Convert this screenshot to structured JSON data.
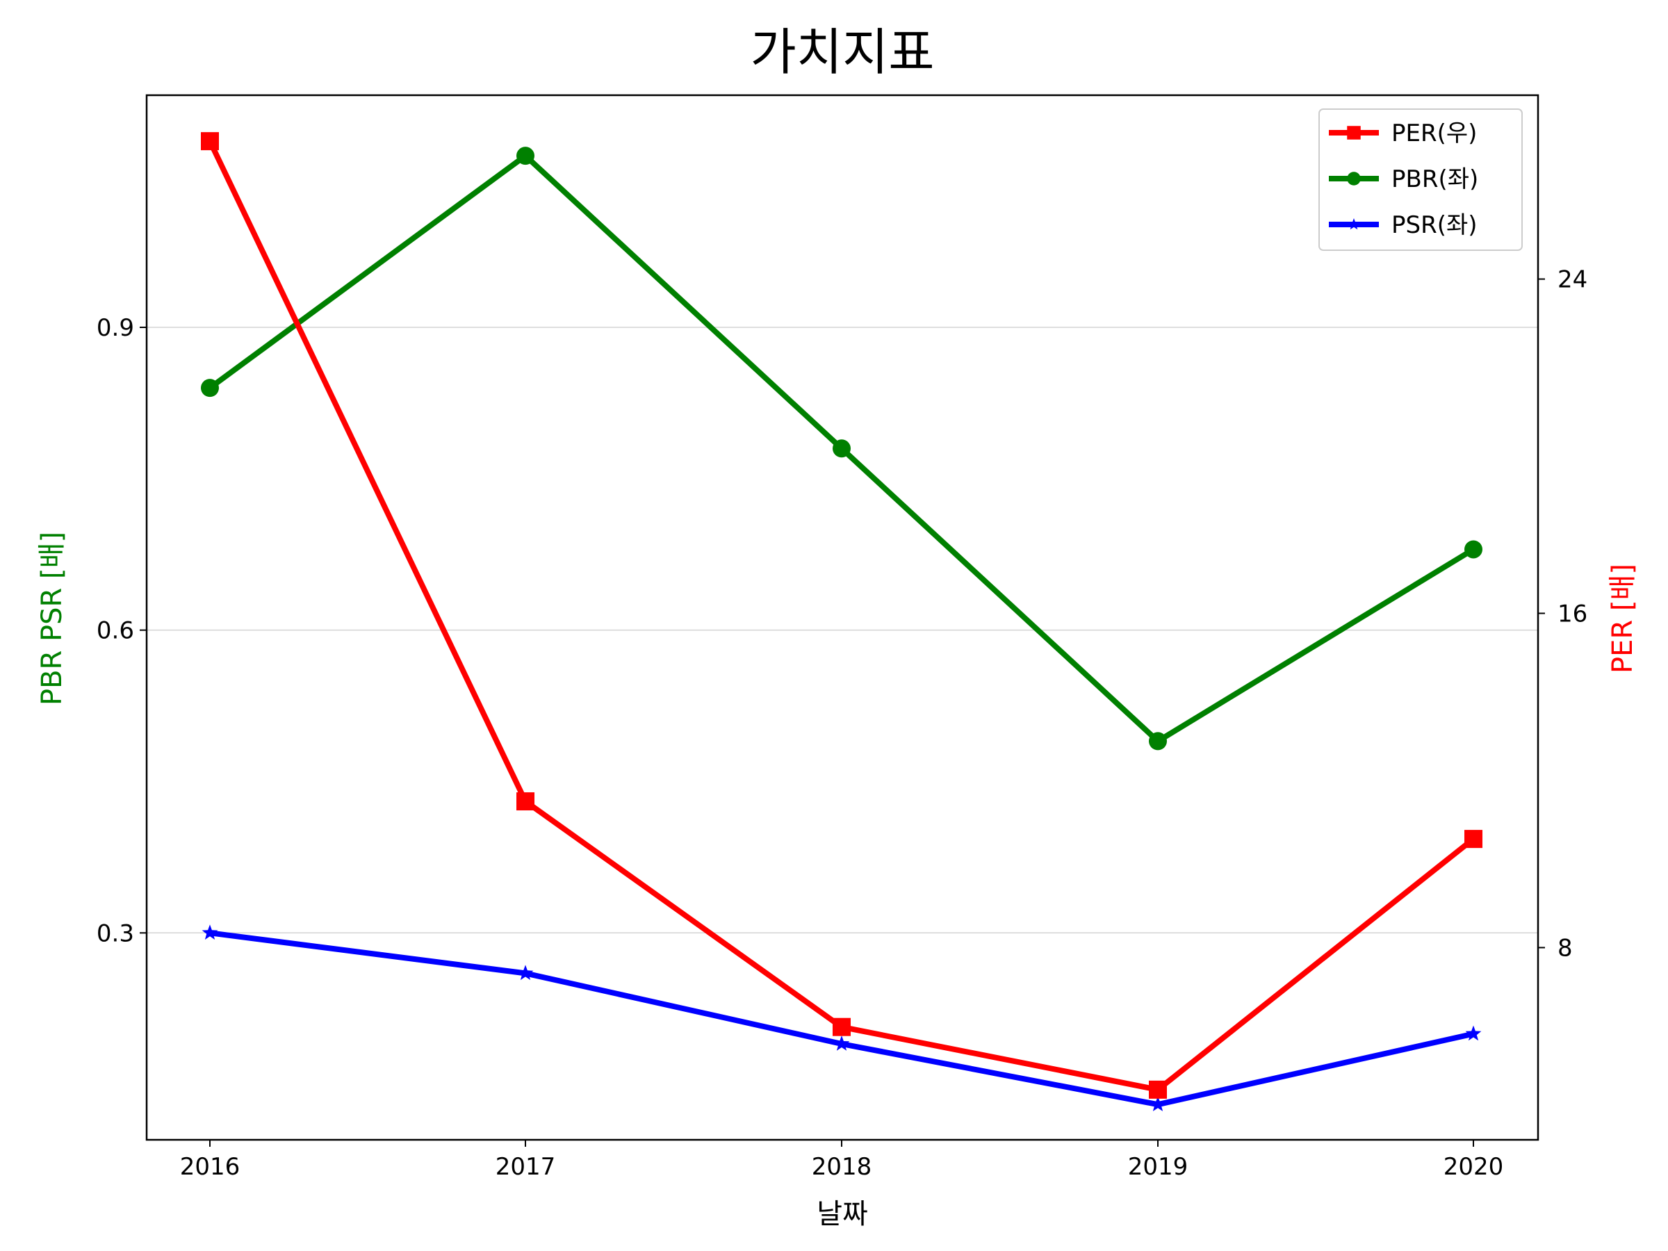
{
  "chart_data": {
    "type": "line",
    "title": "가치지표",
    "xlabel": "날짜",
    "ylabel_left": "PBR PSR [배]",
    "ylabel_right": "PER [배]",
    "ylabel_left_color": "#008000",
    "ylabel_right_color": "#ff0000",
    "categories": [
      "2016",
      "2017",
      "2018",
      "2019",
      "2020"
    ],
    "left_axis": {
      "ylim": [
        0.095,
        1.13
      ],
      "ticks": [
        0.3,
        0.6,
        0.9
      ],
      "tick_labels": [
        "0.3",
        "0.6",
        "0.9"
      ]
    },
    "right_axis": {
      "ylim": [
        3.4,
        28.4
      ],
      "ticks": [
        8,
        16,
        24
      ],
      "tick_labels": [
        "8",
        "16",
        "24"
      ]
    },
    "grid": "horizontal, left axis",
    "legend_placement": "top-right",
    "series": [
      {
        "name": "PER(우)",
        "axis": "right",
        "color": "#ff0000",
        "marker": "square",
        "values": [
          27.3,
          11.5,
          6.1,
          4.6,
          10.6
        ]
      },
      {
        "name": "PBR(좌)",
        "axis": "left",
        "color": "#008000",
        "marker": "circle",
        "values": [
          0.84,
          1.07,
          0.78,
          0.49,
          0.68
        ]
      },
      {
        "name": "PSR(좌)",
        "axis": "left",
        "color": "#0000ff",
        "marker": "star",
        "values": [
          0.3,
          0.26,
          0.19,
          0.13,
          0.2
        ]
      }
    ]
  }
}
